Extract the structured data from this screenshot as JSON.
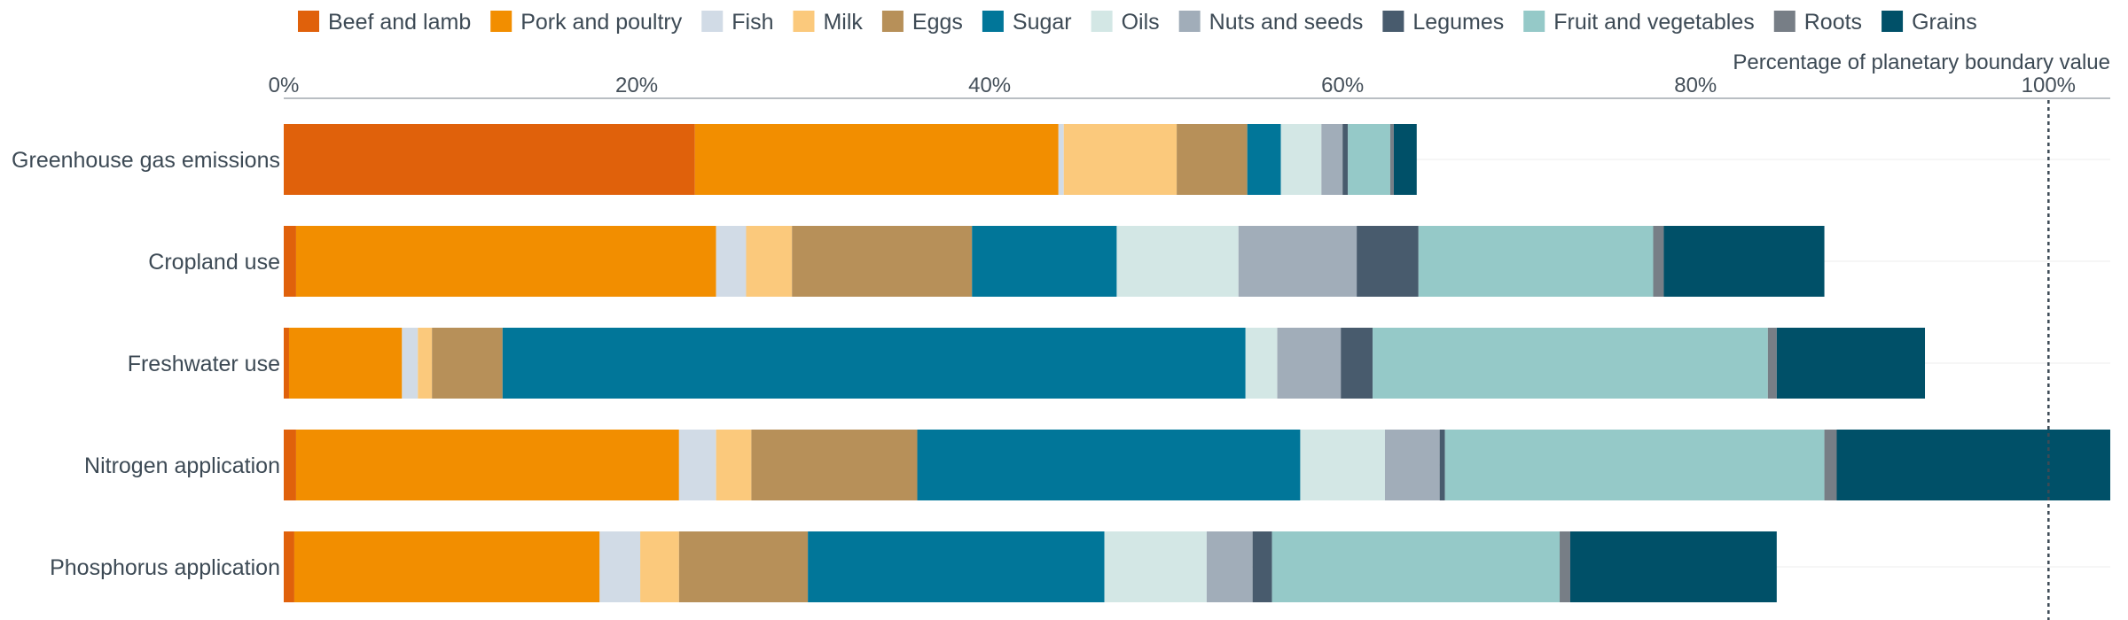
{
  "chart_data": {
    "type": "bar",
    "orientation": "horizontal",
    "stacked": true,
    "axis_title": "Percentage of planetary boundary value",
    "x_ticks": [
      "0%",
      "20%",
      "40%",
      "60%",
      "80%",
      "100%"
    ],
    "x_tick_values": [
      0,
      20,
      40,
      60,
      80,
      100
    ],
    "xlim": [
      0,
      103.5
    ],
    "reference_line": 100,
    "grid": true,
    "legend_position": "top",
    "categories": [
      "Greenhouse gas emissions",
      "Cropland use",
      "Freshwater use",
      "Nitrogen application",
      "Phosphorus application"
    ],
    "series": [
      {
        "name": "Beef and lamb",
        "color": "#e0610b",
        "values": [
          23.3,
          0.7,
          0.3,
          0.7,
          0.6
        ]
      },
      {
        "name": "Pork and poultry",
        "color": "#f28e00",
        "values": [
          20.6,
          23.8,
          6.4,
          21.7,
          17.3
        ]
      },
      {
        "name": "Fish",
        "color": "#d1dbe6",
        "values": [
          0.3,
          1.7,
          0.9,
          2.1,
          2.3
        ]
      },
      {
        "name": "Milk",
        "color": "#fbc97c",
        "values": [
          6.4,
          2.6,
          0.8,
          2.0,
          2.2
        ]
      },
      {
        "name": "Eggs",
        "color": "#b79059",
        "values": [
          4.0,
          10.2,
          4.0,
          9.4,
          7.3
        ]
      },
      {
        "name": "Sugar",
        "color": "#017699",
        "values": [
          1.9,
          8.2,
          42.1,
          21.7,
          16.8
        ]
      },
      {
        "name": "Oils",
        "color": "#d3e7e5",
        "values": [
          2.3,
          6.9,
          1.8,
          4.8,
          5.8
        ]
      },
      {
        "name": "Nuts and seeds",
        "color": "#a1adb9",
        "values": [
          1.2,
          6.7,
          3.6,
          3.1,
          2.6
        ]
      },
      {
        "name": "Legumes",
        "color": "#485b6d",
        "values": [
          0.3,
          3.5,
          1.8,
          0.3,
          1.1
        ]
      },
      {
        "name": "Fruit and vegetables",
        "color": "#95c9c8",
        "values": [
          2.4,
          13.3,
          22.4,
          21.5,
          16.3
        ]
      },
      {
        "name": "Roots",
        "color": "#777e86",
        "values": [
          0.2,
          0.6,
          0.5,
          0.7,
          0.6
        ]
      },
      {
        "name": "Grains",
        "color": "#005068",
        "values": [
          1.3,
          9.1,
          8.4,
          15.5,
          11.7
        ]
      }
    ]
  }
}
